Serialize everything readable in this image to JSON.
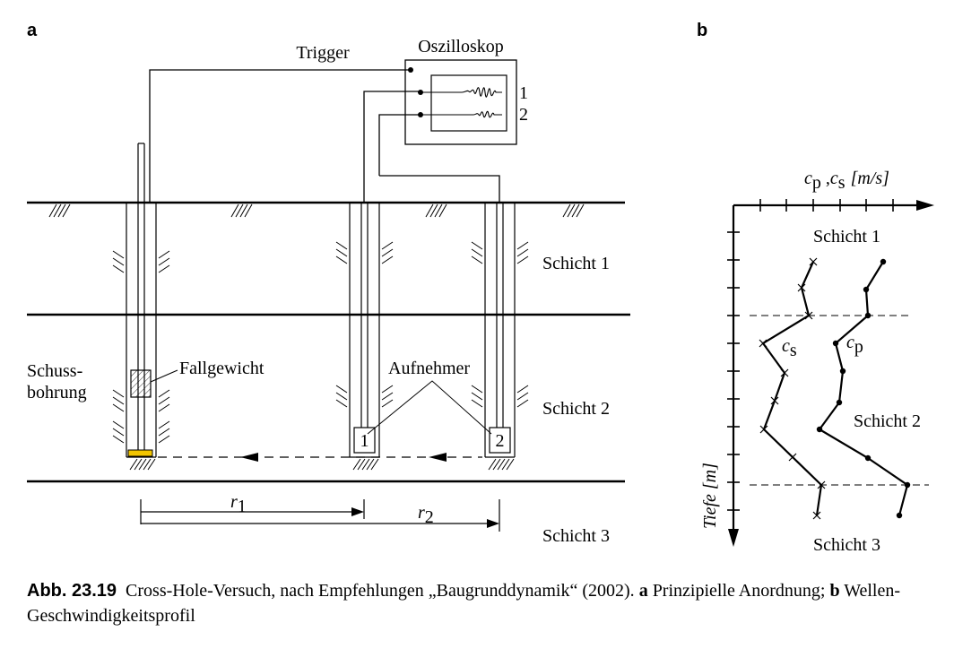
{
  "panel_a": {
    "letter": "a",
    "trigger": "Trigger",
    "oscilloscope": "Oszilloskop",
    "channel_1": "1",
    "channel_2": "2",
    "shot_hole_line1": "Schuss-",
    "shot_hole_line2": "bohrung",
    "drop_weight": "Fallgewicht",
    "receivers": "Aufnehmer",
    "receiver_1": "1",
    "receiver_2": "2",
    "layer_1": "Schicht 1",
    "layer_2": "Schicht 2",
    "layer_3": "Schicht 3",
    "r1_main": "r",
    "r1_sub": "1",
    "r2_main": "r",
    "r2_sub": "2"
  },
  "panel_b": {
    "letter": "b",
    "x_axis_label_cp": "c",
    "x_axis_label_cp_sub": "p",
    "x_axis_label_sep": " ,",
    "x_axis_label_cs": "c",
    "x_axis_label_cs_sub": "s",
    "x_axis_unit": "[m/s]",
    "y_axis_label": "Tiefe [m]",
    "layer_1": "Schicht 1",
    "layer_2": "Schicht 2",
    "layer_3": "Schicht 3",
    "cs_label": "c",
    "cs_label_sub": "s",
    "cp_label": "c",
    "cp_label_sub": "p"
  },
  "caption": {
    "number": "Abb. 23.19",
    "text_1": "Cross-Hole-Versuch, nach Empfehlungen „Baugrunddynamik“ (2002).",
    "bold_a": "a",
    "text_2": "Prinzipielle Anordnung;",
    "bold_b": "b",
    "text_3": "Wellen-Geschwindigkeitsprofil"
  },
  "colors": {
    "ink": "#000000",
    "drop_weight_base": "#f2c500"
  }
}
